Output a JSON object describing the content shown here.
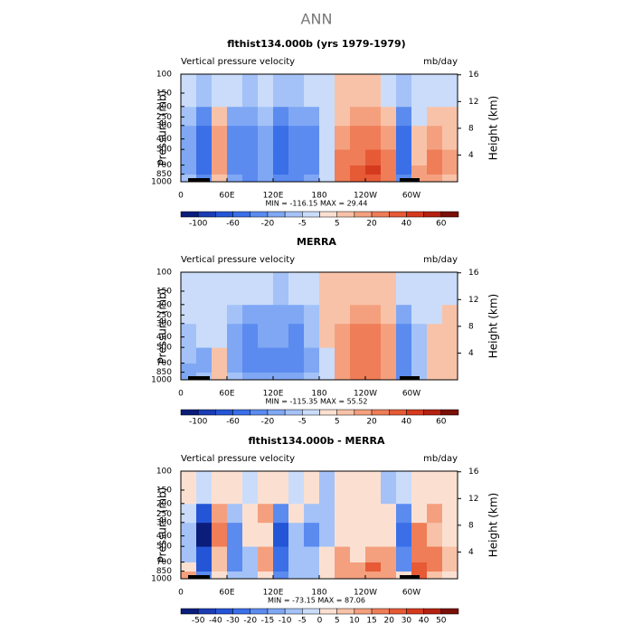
{
  "figure_title": "ANN",
  "chart_data": [
    {
      "type": "contour",
      "title": "flthist134.000b (yrs 1979-1979)",
      "left_string": "Vertical pressure velocity",
      "right_string": "mb/day",
      "ylabel": "Pressure (mb)",
      "y2label": "Height (km)",
      "stats": "MIN = -116.15   MAX =  29.44",
      "x": [
        0,
        20,
        40,
        60,
        80,
        100,
        120,
        140,
        160,
        180,
        200,
        220,
        240,
        260,
        280,
        300,
        320,
        340,
        360
      ],
      "y": [
        1000,
        850,
        700,
        500,
        300,
        200,
        100
      ],
      "values": [
        [
          -10,
          -30,
          5,
          -20,
          -30,
          -20,
          -40,
          -30,
          -20,
          -5,
          20,
          30,
          30,
          20,
          -40,
          10,
          10,
          5
        ],
        [
          -20,
          -60,
          10,
          -40,
          -40,
          -20,
          -60,
          -40,
          -30,
          -5,
          20,
          30,
          40,
          20,
          -60,
          10,
          20,
          10
        ],
        [
          -20,
          -60,
          10,
          -40,
          -40,
          -20,
          -60,
          -40,
          -30,
          -5,
          20,
          20,
          30,
          20,
          -60,
          5,
          20,
          10
        ],
        [
          -20,
          -60,
          10,
          -40,
          -30,
          -20,
          -60,
          -40,
          -30,
          -5,
          10,
          20,
          20,
          10,
          -60,
          5,
          10,
          5
        ],
        [
          -10,
          -40,
          5,
          -20,
          -20,
          -10,
          -40,
          -20,
          -20,
          -5,
          5,
          10,
          10,
          5,
          -40,
          -5,
          5,
          5
        ],
        [
          -5,
          -10,
          -5,
          -5,
          -10,
          -5,
          -10,
          -10,
          -5,
          -5,
          5,
          5,
          5,
          -5,
          -10,
          -5,
          -5,
          -5
        ]
      ],
      "xlim": [
        0,
        360
      ],
      "xticks": [
        0,
        {
          "value": 60,
          "label": "60E"
        },
        {
          "value": 120,
          "label": "120E"
        },
        180,
        {
          "value": 240,
          "label": "120W"
        },
        {
          "value": 300,
          "label": "60W"
        }
      ],
      "ylim": [
        1000,
        100
      ],
      "ylog": true,
      "yticks": [
        100,
        150,
        200,
        250,
        300,
        400,
        500,
        700,
        850,
        1000
      ],
      "y2lim": [
        0,
        16.1
      ],
      "y2ticks": [
        4,
        8,
        12,
        16
      ],
      "colorbar": {
        "levels": [
          -100,
          -80,
          -60,
          -40,
          -20,
          -10,
          -5,
          0,
          5,
          10,
          20,
          30,
          40,
          50,
          60
        ],
        "colors": [
          "#0b1d7a",
          "#1a3cb4",
          "#2455d6",
          "#3a6fe8",
          "#5b8bef",
          "#7fa7f4",
          "#a4c2f7",
          "#cadcfa",
          "#fbe0d2",
          "#f8c2a8",
          "#f4a07e",
          "#ee7d58",
          "#e65a36",
          "#d63a1e",
          "#b52010",
          "#7a0f08"
        ],
        "ticks": [
          -100,
          -60,
          -20,
          -5,
          5,
          20,
          40,
          60
        ]
      }
    },
    {
      "type": "contour",
      "title": "MERRA",
      "left_string": "Vertical pressure velocity",
      "right_string": "mb/day",
      "ylabel": "Pressure (mb)",
      "y2label": "Height (km)",
      "stats": "MIN = -115.35   MAX =  55.52",
      "x": [
        0,
        20,
        40,
        60,
        80,
        100,
        120,
        140,
        160,
        180,
        200,
        220,
        240,
        260,
        280,
        300,
        320,
        340,
        360
      ],
      "y": [
        1000,
        850,
        700,
        500,
        300,
        200,
        100
      ],
      "values": [
        [
          -20,
          -10,
          5,
          -10,
          -20,
          -20,
          -20,
          -20,
          -10,
          -5,
          10,
          20,
          20,
          10,
          -40,
          -10,
          5,
          5
        ],
        [
          -20,
          -20,
          5,
          -20,
          -30,
          -30,
          -30,
          -30,
          -20,
          -5,
          10,
          20,
          20,
          10,
          -40,
          -10,
          5,
          5
        ],
        [
          -10,
          -20,
          5,
          -20,
          -30,
          -30,
          -30,
          -30,
          -20,
          -5,
          10,
          20,
          20,
          10,
          -40,
          -10,
          5,
          5
        ],
        [
          -10,
          -5,
          -5,
          -20,
          -30,
          -20,
          -20,
          -30,
          -10,
          5,
          10,
          20,
          20,
          10,
          -30,
          -10,
          5,
          5
        ],
        [
          -5,
          -5,
          -5,
          -10,
          -20,
          -20,
          -20,
          -20,
          -10,
          5,
          5,
          10,
          10,
          5,
          -20,
          -5,
          -5,
          5
        ],
        [
          -5,
          -5,
          -5,
          -5,
          -5,
          -5,
          -10,
          -5,
          -5,
          5,
          5,
          5,
          5,
          5,
          -5,
          -5,
          -5,
          -5
        ]
      ],
      "xlim": [
        0,
        360
      ],
      "xticks": [
        0,
        {
          "value": 60,
          "label": "60E"
        },
        {
          "value": 120,
          "label": "120E"
        },
        180,
        {
          "value": 240,
          "label": "120W"
        },
        {
          "value": 300,
          "label": "60W"
        }
      ],
      "ylim": [
        1000,
        100
      ],
      "ylog": true,
      "yticks": [
        100,
        150,
        200,
        250,
        300,
        400,
        500,
        700,
        850,
        1000
      ],
      "y2lim": [
        0,
        16.1
      ],
      "y2ticks": [
        4,
        8,
        12,
        16
      ],
      "colorbar": {
        "levels": [
          -100,
          -80,
          -60,
          -40,
          -20,
          -10,
          -5,
          0,
          5,
          10,
          20,
          30,
          40,
          50,
          60
        ],
        "colors": [
          "#0b1d7a",
          "#1a3cb4",
          "#2455d6",
          "#3a6fe8",
          "#5b8bef",
          "#7fa7f4",
          "#a4c2f7",
          "#cadcfa",
          "#fbe0d2",
          "#f8c2a8",
          "#f4a07e",
          "#ee7d58",
          "#e65a36",
          "#d63a1e",
          "#b52010",
          "#7a0f08"
        ],
        "ticks": [
          -100,
          -60,
          -20,
          -5,
          5,
          20,
          40,
          60
        ]
      }
    },
    {
      "type": "contour",
      "title": "flthist134.000b - MERRA",
      "left_string": "Vertical pressure velocity",
      "right_string": "mb/day",
      "ylabel": "Pressure (mb)",
      "y2label": "Height (km)",
      "stats": "MIN = -73.15   MAX =  87.06",
      "x": [
        0,
        20,
        40,
        60,
        80,
        100,
        120,
        140,
        160,
        180,
        200,
        220,
        240,
        260,
        280,
        300,
        320,
        340,
        360
      ],
      "y": [
        1000,
        850,
        700,
        500,
        300,
        200,
        100
      ],
      "values": [
        [
          10,
          -20,
          0,
          -10,
          -10,
          0,
          -20,
          -10,
          -10,
          0,
          10,
          10,
          10,
          10,
          0,
          20,
          5,
          0
        ],
        [
          0,
          -40,
          5,
          -20,
          -10,
          10,
          -30,
          -10,
          -10,
          0,
          10,
          10,
          20,
          10,
          -20,
          20,
          15,
          5
        ],
        [
          -10,
          -40,
          5,
          -20,
          -10,
          10,
          -30,
          -10,
          -10,
          0,
          10,
          0,
          10,
          10,
          -20,
          15,
          15,
          5
        ],
        [
          -10,
          -55,
          15,
          -20,
          0,
          0,
          -40,
          -10,
          -20,
          -10,
          0,
          0,
          0,
          0,
          -30,
          15,
          5,
          0
        ],
        [
          -5,
          -35,
          10,
          -10,
          0,
          10,
          -20,
          0,
          -10,
          -10,
          0,
          0,
          0,
          0,
          -20,
          0,
          10,
          0
        ],
        [
          0,
          -5,
          0,
          0,
          -5,
          0,
          0,
          -5,
          0,
          -10,
          0,
          0,
          0,
          -10,
          -5,
          0,
          0,
          0
        ]
      ],
      "xlim": [
        0,
        360
      ],
      "xticks": [
        0,
        {
          "value": 60,
          "label": "60E"
        },
        {
          "value": 120,
          "label": "120E"
        },
        180,
        {
          "value": 240,
          "label": "120W"
        },
        {
          "value": 300,
          "label": "60W"
        }
      ],
      "ylim": [
        1000,
        100
      ],
      "ylog": true,
      "yticks": [
        100,
        150,
        200,
        250,
        300,
        400,
        500,
        700,
        850,
        1000
      ],
      "y2lim": [
        0,
        16.1
      ],
      "y2ticks": [
        4,
        8,
        12,
        16
      ],
      "colorbar": {
        "levels": [
          -50,
          -40,
          -30,
          -20,
          -15,
          -10,
          -5,
          0,
          5,
          10,
          15,
          20,
          30,
          40,
          50
        ],
        "colors": [
          "#0b1d7a",
          "#1a3cb4",
          "#2455d6",
          "#3a6fe8",
          "#5b8bef",
          "#7fa7f4",
          "#a4c2f7",
          "#cadcfa",
          "#fbe0d2",
          "#f8c2a8",
          "#f4a07e",
          "#ee7d58",
          "#e65a36",
          "#d63a1e",
          "#b52010",
          "#7a0f08"
        ],
        "ticks": [
          -50,
          -40,
          -30,
          -20,
          -15,
          -10,
          -5,
          0,
          5,
          10,
          15,
          20,
          30,
          40,
          50
        ]
      }
    }
  ]
}
